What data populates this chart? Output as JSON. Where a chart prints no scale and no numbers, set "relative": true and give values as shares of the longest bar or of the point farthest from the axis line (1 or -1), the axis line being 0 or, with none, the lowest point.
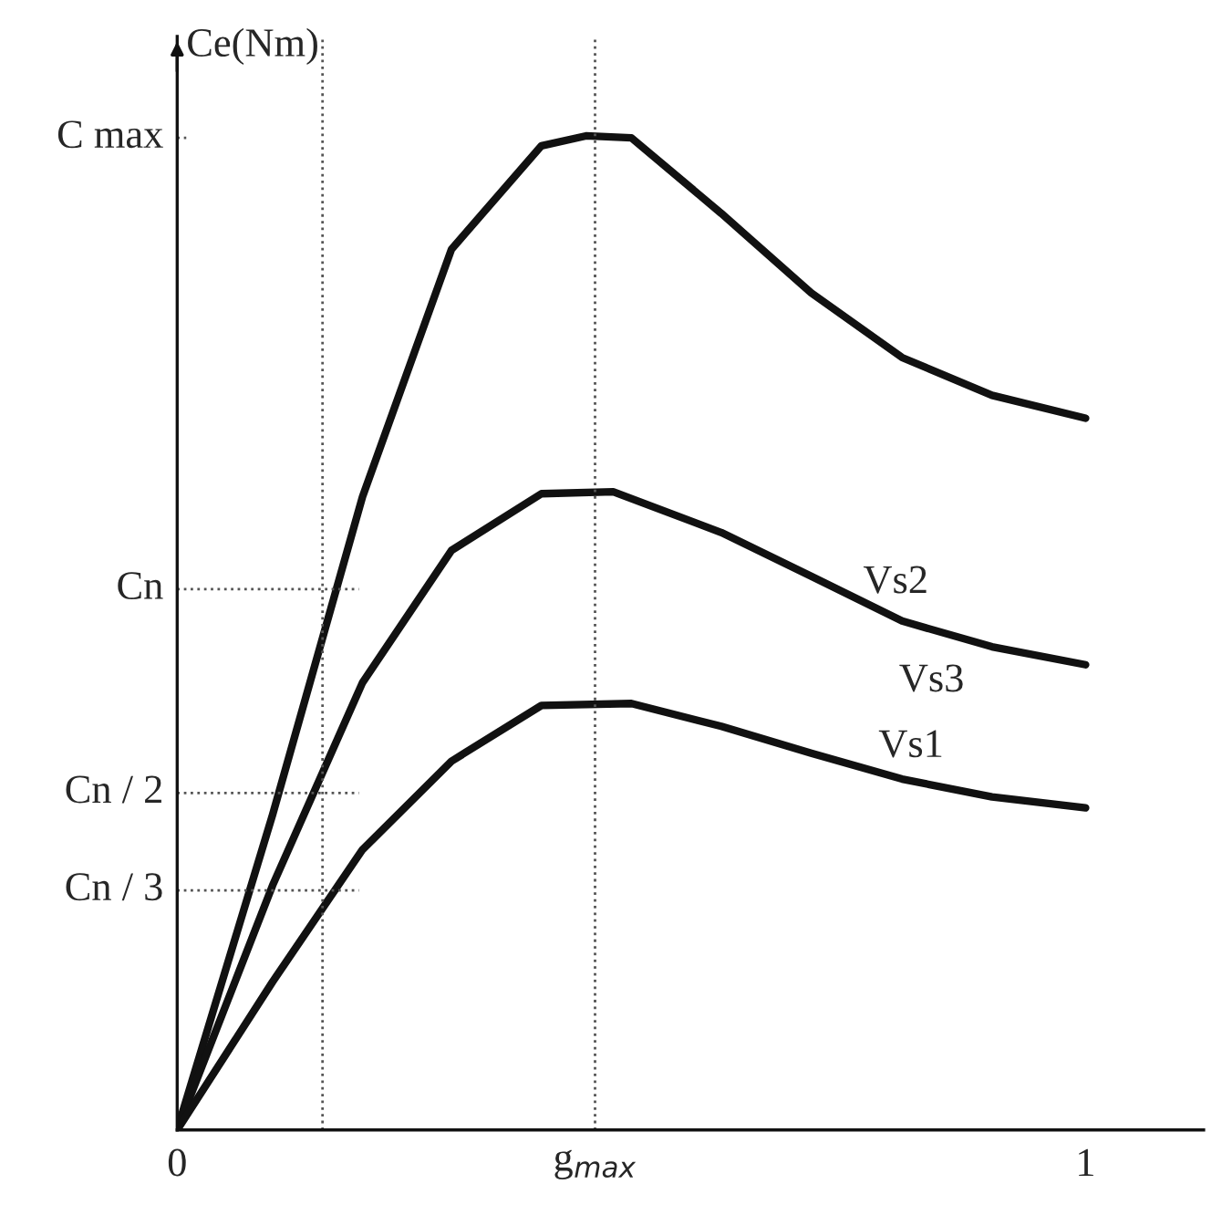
{
  "chart_data": {
    "type": "line",
    "relative": true,
    "ylabel": "Ce(Nm)",
    "xlim": [
      0,
      1.13
    ],
    "xticks": [
      0,
      1
    ],
    "grid": false,
    "marker": "none",
    "line_style": "solid",
    "series": [
      {
        "color": "#111111",
        "x": [
          0,
          0.105,
          0.204,
          0.302,
          0.401,
          0.45,
          0.5,
          0.599,
          0.698,
          0.798,
          0.897,
          1.0
        ],
        "values": [
          0,
          0.317,
          0.637,
          0.886,
          0.99,
          1.0,
          0.998,
          0.922,
          0.842,
          0.777,
          0.739,
          0.716
        ]
      },
      {
        "color": "#111111",
        "x": [
          0,
          0.105,
          0.204,
          0.302,
          0.401,
          0.48,
          0.599,
          0.698,
          0.798,
          0.897,
          1.0
        ],
        "values": [
          0,
          0.246,
          0.45,
          0.583,
          0.64,
          0.642,
          0.601,
          0.557,
          0.512,
          0.486,
          0.468
        ]
      },
      {
        "color": "#111111",
        "x": [
          0,
          0.105,
          0.204,
          0.302,
          0.401,
          0.5,
          0.599,
          0.698,
          0.798,
          0.897,
          1.0
        ],
        "values": [
          0,
          0.149,
          0.282,
          0.371,
          0.427,
          0.429,
          0.406,
          0.379,
          0.353,
          0.335,
          0.324
        ]
      }
    ],
    "ref_lines": [
      {
        "axis": "y",
        "value": 0.998,
        "label": "C max",
        "line_style": "dotted",
        "color": "#555555"
      },
      {
        "axis": "y",
        "value": 0.544,
        "label": "Cn",
        "line_style": "dotted",
        "color": "#555555"
      },
      {
        "axis": "y",
        "value": 0.339,
        "label": "Cn / 2",
        "line_style": "dotted",
        "color": "#555555"
      },
      {
        "axis": "y",
        "value": 0.241,
        "label": "Cn / 3",
        "line_style": "dotted",
        "color": "#555555"
      },
      {
        "axis": "x",
        "value": 0.46,
        "label": "g$_{max}$",
        "line_style": "dotted",
        "color": "#555555"
      },
      {
        "axis": "x",
        "value": 0.16,
        "label": null,
        "line_style": "dotted",
        "color": "#555555"
      }
    ],
    "annotations": [
      "Vs2",
      "Vs3",
      "Vs1"
    ]
  }
}
